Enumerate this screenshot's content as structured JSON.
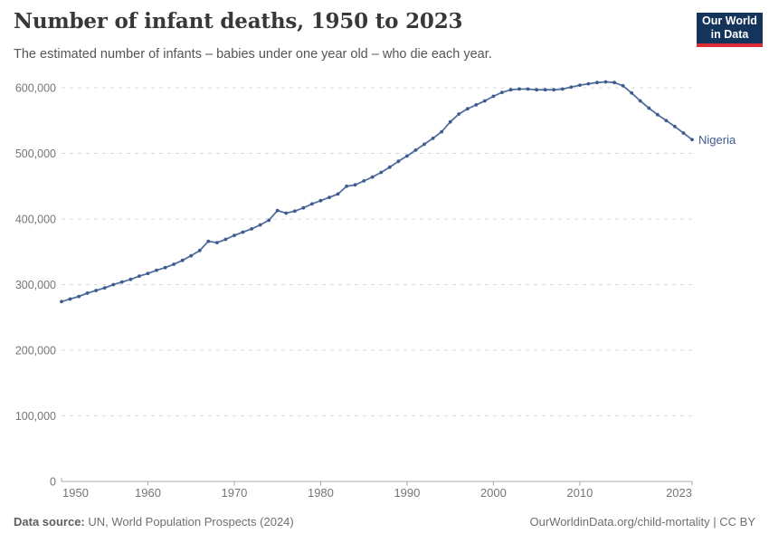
{
  "header": {
    "title": "Number of infant deaths, 1950 to 2023",
    "subtitle": "The estimated number of infants – babies under one year old – who die each year."
  },
  "logo": {
    "line1": "Our World",
    "line2": "in Data",
    "bg_color": "#14345c",
    "bar_color": "#dd2c37"
  },
  "chart_data": {
    "type": "line",
    "title": "Number of infant deaths, 1950 to 2023",
    "subtitle": "The estimated number of infants – babies under one year old – who die each year.",
    "xlabel": "",
    "ylabel": "",
    "xlim": [
      1950,
      2023
    ],
    "ylim": [
      0,
      600000
    ],
    "grid": "horizontal-dashed",
    "legend_position": "end-of-line-label",
    "x": [
      1950,
      1951,
      1952,
      1953,
      1954,
      1955,
      1956,
      1957,
      1958,
      1959,
      1960,
      1961,
      1962,
      1963,
      1964,
      1965,
      1966,
      1967,
      1968,
      1969,
      1970,
      1971,
      1972,
      1973,
      1974,
      1975,
      1976,
      1977,
      1978,
      1979,
      1980,
      1981,
      1982,
      1983,
      1984,
      1985,
      1986,
      1987,
      1988,
      1989,
      1990,
      1991,
      1992,
      1993,
      1994,
      1995,
      1996,
      1997,
      1998,
      1999,
      2000,
      2001,
      2002,
      2003,
      2004,
      2005,
      2006,
      2007,
      2008,
      2009,
      2010,
      2011,
      2012,
      2013,
      2014,
      2015,
      2016,
      2017,
      2018,
      2019,
      2020,
      2021,
      2022,
      2023
    ],
    "series": [
      {
        "name": "Nigeria",
        "color": "#52709e",
        "marker_color": "#3d5a8f",
        "values": [
          274000,
          278000,
          282000,
          287000,
          291000,
          295000,
          300000,
          304000,
          308000,
          313000,
          317000,
          322000,
          326000,
          331000,
          337000,
          344000,
          352000,
          366000,
          364000,
          369000,
          375000,
          380000,
          385000,
          391000,
          398000,
          413000,
          409000,
          412000,
          417000,
          423000,
          428000,
          433000,
          438000,
          450000,
          452000,
          458000,
          464000,
          471000,
          479000,
          488000,
          496000,
          505000,
          514000,
          523000,
          533000,
          548000,
          560000,
          568000,
          574000,
          580000,
          587000,
          593000,
          597000,
          598000,
          598000,
          597000,
          597000,
          597000,
          598000,
          601000,
          604000,
          606000,
          608000,
          609000,
          608000,
          603000,
          592000,
          580000,
          569000,
          559000,
          550000,
          541000,
          531000,
          521000
        ]
      }
    ],
    "yticks": {
      "values": [
        0,
        100000,
        200000,
        300000,
        400000,
        500000,
        600000
      ],
      "labels": [
        "0",
        "100,000",
        "200,000",
        "300,000",
        "400,000",
        "500,000",
        "600,000"
      ]
    },
    "xticks": {
      "values": [
        1950,
        1960,
        1970,
        1980,
        1990,
        2000,
        2010,
        2023
      ],
      "labels": [
        "1950",
        "1960",
        "1970",
        "1980",
        "1990",
        "2000",
        "2010",
        "2023"
      ]
    }
  },
  "colors": {
    "grid": "#d9d9d9",
    "axis": "#a8a8a8",
    "tick_text": "#757575",
    "title_text": "#383838",
    "subtitle_text": "#555555"
  },
  "footer": {
    "source_label": "Data source:",
    "source_text": " UN, World Population Prospects (2024)",
    "credit": "OurWorldinData.org/child-mortality | CC BY"
  }
}
